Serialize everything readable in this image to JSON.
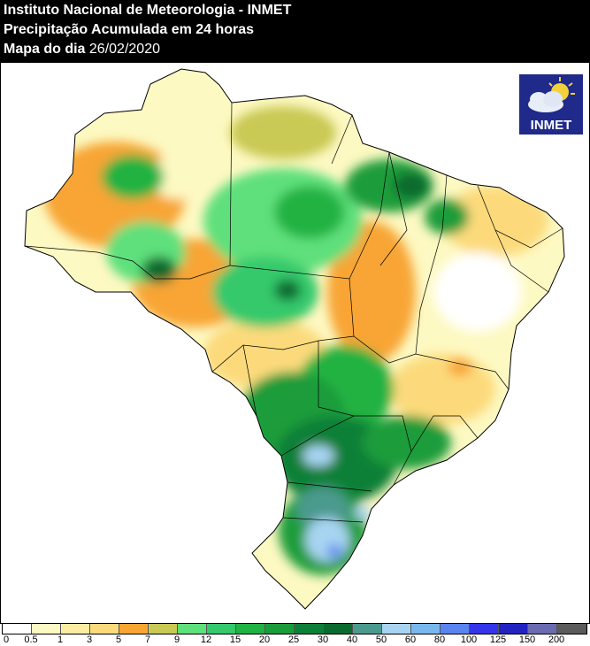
{
  "header": {
    "line1": "Instituto Nacional de Meteorologia - INMET",
    "line2": "Precipitação Acumulada em 24 horas",
    "line3_label": "Mapa do dia",
    "line3_date": "26/02/2020"
  },
  "logo": {
    "text": "INMET",
    "icon": "sun-cloud-icon"
  },
  "legend": {
    "colors": [
      "#ffffff",
      "#fdf9c2",
      "#fdeda2",
      "#fcda7c",
      "#f8a534",
      "#c9c955",
      "#5ee07b",
      "#34c96c",
      "#20b243",
      "#1a9c3a",
      "#0c8038",
      "#0b6b2f",
      "#4b9a8e",
      "#a8d4f2",
      "#79b8ee",
      "#5a84ef",
      "#3535ea",
      "#2323c2",
      "#6b6bb0",
      "#5b5b5b"
    ],
    "ticks": [
      "0",
      "0.5",
      "1",
      "3",
      "5",
      "7",
      "9",
      "12",
      "15",
      "20",
      "25",
      "30",
      "40",
      "50",
      "60",
      "80",
      "100",
      "125",
      "150",
      "200"
    ]
  }
}
